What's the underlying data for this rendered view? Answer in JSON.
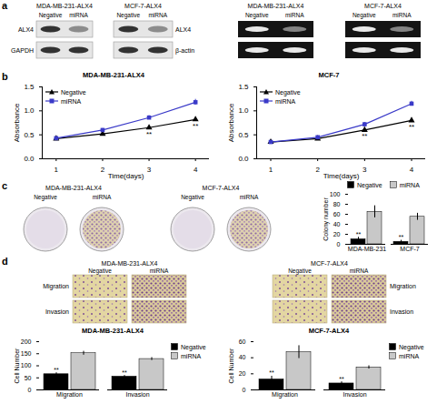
{
  "panel_labels": [
    "a",
    "b",
    "c",
    "d"
  ],
  "western_blot": {
    "groups": [
      {
        "title": "MDA-MB-231-ALX4",
        "lanes": [
          "Negative",
          "miRNA"
        ],
        "row_labels": [
          "ALX4",
          "GAPDH"
        ]
      },
      {
        "title": "MCF-7-ALX4",
        "lanes": [
          "Negative",
          "miRNA"
        ],
        "row_labels": [
          "ALX4",
          "β-actin"
        ]
      }
    ]
  },
  "gel": {
    "groups": [
      {
        "title": "MDA-MB-231-ALX4",
        "lanes": [
          "Negative",
          "miRNA"
        ]
      },
      {
        "title": "MCF-7-ALX4",
        "lanes": [
          "Negative",
          "miRNA"
        ]
      }
    ]
  },
  "colony_images": {
    "groups": [
      {
        "title": "MDA-MB-231-ALX4",
        "lanes": [
          "Negative",
          "miRNA"
        ]
      },
      {
        "title": "MCF-7-ALX4",
        "lanes": [
          "Negative",
          "miRNA"
        ]
      }
    ]
  },
  "transwell_images": {
    "groups": [
      {
        "title": "MDA-MB-231-ALX4",
        "lanes": [
          "Negative",
          "miRNA"
        ],
        "row_labels": [
          "Migration",
          "Invasion"
        ]
      },
      {
        "title": "MCF-7-ALX4",
        "lanes": [
          "Negative",
          "miRNA"
        ],
        "row_labels": [
          "Migration",
          "Invasion"
        ]
      }
    ]
  },
  "chart_data": [
    {
      "type": "line",
      "title": "MDA-MB-231-ALX4",
      "x_label": "Time(days)",
      "y_label": "Absorbance",
      "x": [
        1,
        2,
        3,
        4
      ],
      "series": [
        {
          "name": "Negative",
          "color": "#000000",
          "marker": "triangle",
          "values": [
            0.42,
            0.52,
            0.65,
            0.82
          ],
          "errors": [
            0.02,
            0.02,
            0.03,
            0.04
          ]
        },
        {
          "name": "miRNA",
          "color": "#3a3ac8",
          "marker": "square",
          "values": [
            0.43,
            0.6,
            0.86,
            1.18
          ],
          "errors": [
            0.02,
            0.03,
            0.04,
            0.06
          ]
        }
      ],
      "xlim": [
        0.7,
        4.3
      ],
      "xticks": [
        1,
        2,
        3,
        4
      ],
      "ylim": [
        0,
        1.5
      ],
      "yticks": [
        {
          "value": 0,
          "label": "0.0"
        },
        0.5,
        {
          "value": 1,
          "label": "1.0"
        },
        1.5
      ],
      "legend": "top-left",
      "annotations": [
        {
          "x": 3,
          "series": "Negative",
          "text": "**"
        },
        {
          "x": 4,
          "series": "Negative",
          "text": "**"
        }
      ]
    },
    {
      "type": "line",
      "title": "MCF-7",
      "x_label": "Time(days)",
      "y_label": "Absorbance",
      "x": [
        1,
        2,
        3,
        4
      ],
      "series": [
        {
          "name": "Negative",
          "color": "#000000",
          "marker": "triangle",
          "values": [
            0.35,
            0.42,
            0.6,
            0.8
          ],
          "errors": [
            0.02,
            0.02,
            0.03,
            0.04
          ]
        },
        {
          "name": "miRNA",
          "color": "#3a3ac8",
          "marker": "square",
          "values": [
            0.35,
            0.45,
            0.72,
            1.15
          ],
          "errors": [
            0.02,
            0.02,
            0.04,
            0.05
          ]
        }
      ],
      "xlim": [
        0.7,
        4.3
      ],
      "xticks": [
        1,
        2,
        3,
        4
      ],
      "ylim": [
        0,
        1.5
      ],
      "yticks": [
        {
          "value": 0,
          "label": "0.0"
        },
        0.5,
        {
          "value": 1,
          "label": "1.0"
        },
        1.5
      ],
      "legend": "top-left",
      "annotations": [
        {
          "x": 3,
          "series": "Negative",
          "text": "**"
        },
        {
          "x": 4,
          "series": "Negative",
          "text": "**"
        }
      ]
    },
    {
      "type": "bar",
      "y_label": "Colony number",
      "categories": [
        "MDA-MB-231",
        "MCF-7"
      ],
      "series": [
        {
          "name": "Negative",
          "color": "#000000",
          "values": [
            10,
            5
          ],
          "errors": [
            4,
            3
          ]
        },
        {
          "name": "miRNA",
          "color": "#c8c8c8",
          "values": [
            65,
            55
          ],
          "errors": [
            12,
            7
          ]
        }
      ],
      "ylim": [
        0,
        100
      ],
      "yticks": [
        0,
        20,
        40,
        60,
        80,
        100
      ],
      "legend": "top",
      "annotations": [
        {
          "x": "MDA-MB-231",
          "series": "Negative",
          "text": "**"
        },
        {
          "x": "MCF-7",
          "series": "Negative",
          "text": "**"
        }
      ]
    },
    {
      "type": "bar",
      "title": "MDA-MB-231-ALX4",
      "y_label": "Cell Number",
      "categories": [
        "Migration",
        "Invasion"
      ],
      "series": [
        {
          "name": "Negative",
          "color": "#000000",
          "values": [
            65,
            55
          ],
          "errors": [
            6,
            5
          ]
        },
        {
          "name": "miRNA",
          "color": "#c8c8c8",
          "values": [
            152,
            128
          ],
          "errors": [
            8,
            6
          ]
        }
      ],
      "ylim": [
        0,
        200
      ],
      "yticks": [
        0,
        50,
        100,
        150,
        200
      ],
      "legend": "right",
      "annotations": [
        {
          "x": "Migration",
          "series": "Negative",
          "text": "**"
        },
        {
          "x": "Invasion",
          "series": "Negative",
          "text": "**"
        }
      ]
    },
    {
      "type": "bar",
      "title": "MCF-7-ALX4",
      "y_label": "Cell Number",
      "categories": [
        "Migration",
        "Invasion"
      ],
      "series": [
        {
          "name": "Negative",
          "color": "#000000",
          "values": [
            13,
            8
          ],
          "errors": [
            4,
            2
          ]
        },
        {
          "name": "miRNA",
          "color": "#c8c8c8",
          "values": [
            47,
            28
          ],
          "errors": [
            8,
            2
          ]
        }
      ],
      "ylim": [
        0,
        60
      ],
      "yticks": [
        0,
        20,
        40,
        60
      ],
      "legend": "right",
      "annotations": [
        {
          "x": "Migration",
          "series": "Negative",
          "text": "**"
        },
        {
          "x": "Invasion",
          "series": "Negative",
          "text": "**"
        }
      ]
    }
  ]
}
